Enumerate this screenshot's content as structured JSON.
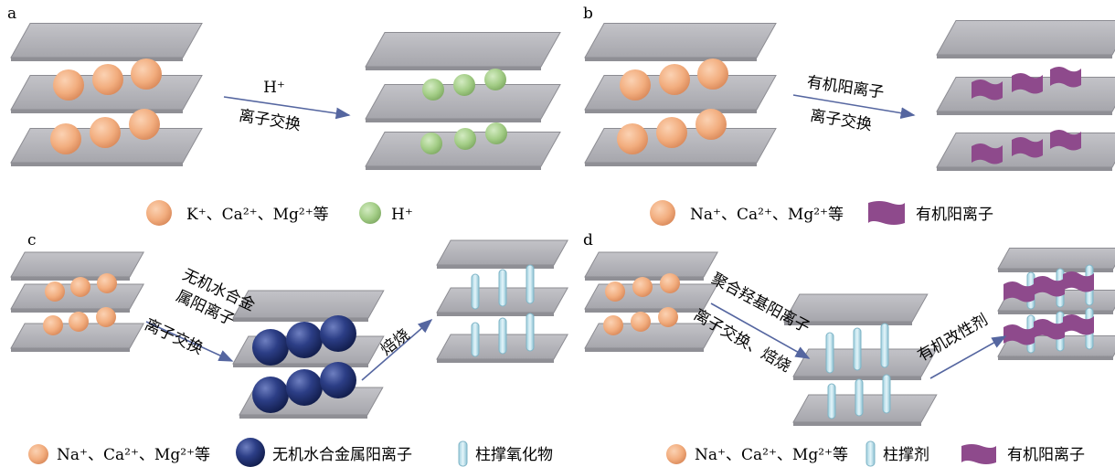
{
  "panels": {
    "a": {
      "letter": "a",
      "arrow_top": "H⁺",
      "arrow_bottom": "离子交换",
      "legend": {
        "item1": "K⁺、Ca²⁺、Mg²⁺等",
        "item2": "H⁺"
      }
    },
    "b": {
      "letter": "b",
      "arrow_top": "有机阳离子",
      "arrow_bottom": "离子交换",
      "legend": {
        "item1": "Na⁺、Ca²⁺、Mg²⁺等",
        "item2": "有机阳离子"
      }
    },
    "c": {
      "letter": "c",
      "arrow1_lines": [
        "无机水合金",
        "属阳离子",
        "离子交换"
      ],
      "arrow2": "焙烧",
      "legend": {
        "item1": "Na⁺、Ca²⁺、Mg²⁺等",
        "item2": "无机水合金属阳离子",
        "item3": "柱撑氧化物"
      }
    },
    "d": {
      "letter": "d",
      "arrow1_top": "聚合羟基阳离子",
      "arrow1_bottom": "离子交换、焙烧",
      "arrow2": "有机改性剂",
      "legend": {
        "item1": "Na⁺、Ca²⁺、Mg²⁺等",
        "item2": "柱撑剂",
        "item3": "有机阳离子"
      }
    }
  },
  "colors": {
    "plate": "#b4b4b9",
    "plate_edge": "#8c8c92",
    "orange_ion": "#f4b184",
    "green_ion": "#a9d18e",
    "navy_ion": "#1f2f6b",
    "organic_cation": "#8e4a8c",
    "pillar": "#bfe3ee",
    "arrow": "#5566a0"
  }
}
